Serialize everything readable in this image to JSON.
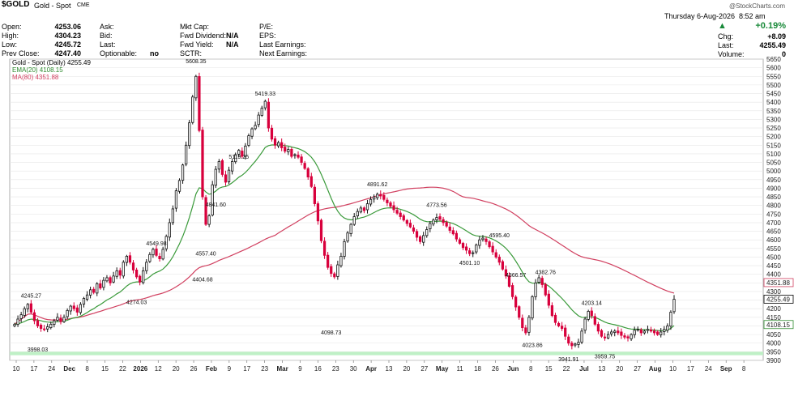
{
  "header": {
    "symbol": "$GOLD",
    "name": "Gold - Spot",
    "exchange": "CME",
    "date": "Thursday  6-Aug-2026",
    "time": "8:52 am",
    "watermark": "@StockCharts.com",
    "change_pct": "+0.19%",
    "up_color": "#1a8a3a",
    "rows": [
      {
        "label": "Open:",
        "value": "4253.06"
      },
      {
        "label": "High:",
        "value": "4304.23"
      },
      {
        "label": "Low:",
        "value": "4245.72"
      },
      {
        "label": "Prev Close:",
        "value": "4247.40"
      }
    ],
    "col2": [
      {
        "label": "Ask:",
        "value": ""
      },
      {
        "label": "Bid:",
        "value": ""
      },
      {
        "label": "Last:",
        "value": ""
      },
      {
        "label": "Optionable:",
        "value": "no"
      }
    ],
    "col3": [
      {
        "label": "Mkt Cap:",
        "value": ""
      },
      {
        "label": "Fwd Dividend:",
        "value": "N/A"
      },
      {
        "label": "Fwd Yield:",
        "value": "N/A"
      },
      {
        "label": "SCTR:",
        "value": ""
      }
    ],
    "col4": [
      {
        "label": "P/E:",
        "value": ""
      },
      {
        "label": "EPS:",
        "value": ""
      },
      {
        "label": "Last Earnings:",
        "value": ""
      },
      {
        "label": "Next Earnings:",
        "value": ""
      }
    ],
    "right": [
      {
        "label": "Chg:",
        "value": "+8.09"
      },
      {
        "label": "Last:",
        "value": "4255.49"
      },
      {
        "label": "Volume:",
        "value": "0"
      }
    ]
  },
  "chart_data": {
    "type": "candlestick",
    "title": "Gold - Spot (Daily) 4255.49",
    "legend": [
      {
        "name": "EMA(20) 4108.15",
        "color": "#2e8b2e"
      },
      {
        "name": "MA(80) 4351.88",
        "color": "#d14060"
      }
    ],
    "colors": {
      "up": "#111111",
      "down": "#d8003c",
      "ema": "#3a9a3a",
      "ma": "#d14060",
      "support_band": "#bff0c6"
    },
    "y_axis": {
      "side": "right",
      "min": 3900,
      "max": 5650,
      "step": 50
    },
    "x_labels": [
      "10",
      "17",
      "24",
      "Dec",
      "8",
      "15",
      "22",
      "2026",
      "12",
      "20",
      "26",
      "Feb",
      "9",
      "17",
      "23",
      "Mar",
      "9",
      "16",
      "23",
      "30",
      "Apr",
      "13",
      "20",
      "27",
      "May",
      "11",
      "18",
      "26",
      "Jun",
      "8",
      "15",
      "22",
      "Jul",
      "13",
      "20",
      "27",
      "Aug",
      "10",
      "17",
      "24",
      "Sep",
      "8"
    ],
    "support_band": [
      3930,
      3950
    ],
    "annotations": [
      {
        "text": "5608.35",
        "value": 5608.35
      },
      {
        "text": "5419.33",
        "value": 5419.33
      },
      {
        "text": "5119.25",
        "value": 5119.25
      },
      {
        "text": "4891.62",
        "value": 4891.62
      },
      {
        "text": "4773.56",
        "value": 4773.56
      },
      {
        "text": "4595.40",
        "value": 4595.4
      },
      {
        "text": "4549.98",
        "value": 4549.98
      },
      {
        "text": "4841.60",
        "value": 4841.6
      },
      {
        "text": "4557.40",
        "value": 4557.4
      },
      {
        "text": "4404.68",
        "value": 4404.68
      },
      {
        "text": "4501.10",
        "value": 4501.1
      },
      {
        "text": "4382.76",
        "value": 4382.76
      },
      {
        "text": "4366.57",
        "value": 4366.57
      },
      {
        "text": "4274.03",
        "value": 4274.03
      },
      {
        "text": "4245.27",
        "value": 4245.27
      },
      {
        "text": "4203.14",
        "value": 4203.14
      },
      {
        "text": "4098.73",
        "value": 4098.73
      },
      {
        "text": "4023.86",
        "value": 4023.86
      },
      {
        "text": "3998.03",
        "value": 3998.03
      },
      {
        "text": "3941.91",
        "value": 3941.91
      },
      {
        "text": "3959.75",
        "value": 3959.75
      }
    ],
    "price_tags": [
      {
        "text": "4351.88",
        "value": 4351.88,
        "color": "#d14060"
      },
      {
        "text": "4255.49",
        "value": 4255.49,
        "color": "#000000"
      },
      {
        "text": "4108.15",
        "value": 4108.15,
        "color": "#2e8b2e"
      }
    ],
    "close": [
      4110,
      4140,
      4165,
      4200,
      4225,
      4180,
      4130,
      4100,
      4085,
      4080,
      4095,
      4110,
      4130,
      4150,
      4125,
      4150,
      4190,
      4215,
      4200,
      4180,
      4225,
      4260,
      4280,
      4310,
      4295,
      4345,
      4320,
      4365,
      4380,
      4350,
      4390,
      4420,
      4395,
      4470,
      4505,
      4470,
      4425,
      4385,
      4355,
      4420,
      4470,
      4515,
      4545,
      4510,
      4490,
      4545,
      4620,
      4700,
      4780,
      4885,
      4945,
      5035,
      5150,
      5280,
      5430,
      5550,
      5235,
      4850,
      4690,
      4740,
      4920,
      5010,
      5055,
      4980,
      4935,
      5005,
      5055,
      5095,
      5120,
      5085,
      5145,
      5205,
      5245,
      5265,
      5325,
      5365,
      5405,
      5250,
      5185,
      5150,
      5165,
      5135,
      5115,
      5125,
      5085,
      5095,
      5080,
      5050,
      5015,
      4965,
      4910,
      4810,
      4710,
      4595,
      4510,
      4440,
      4405,
      4385,
      4455,
      4505,
      4590,
      4640,
      4690,
      4735,
      4765,
      4785,
      4770,
      4810,
      4835,
      4850,
      4865,
      4855,
      4835,
      4815,
      4795,
      4775,
      4755,
      4735,
      4715,
      4695,
      4675,
      4650,
      4615,
      4590,
      4625,
      4660,
      4695,
      4715,
      4730,
      4720,
      4700,
      4680,
      4655,
      4635,
      4605,
      4580,
      4555,
      4540,
      4520,
      4525,
      4570,
      4600,
      4610,
      4590,
      4560,
      4530,
      4500,
      4470,
      4430,
      4390,
      4330,
      4270,
      4210,
      4150,
      4090,
      4060,
      4150,
      4270,
      4350,
      4380,
      4340,
      4280,
      4220,
      4160,
      4120,
      4100,
      4085,
      4040,
      4000,
      3985,
      3995,
      4005,
      4070,
      4140,
      4185,
      4160,
      4110,
      4070,
      4040,
      4030,
      4050,
      4065,
      4070,
      4060,
      4045,
      4035,
      4030,
      4050,
      4075,
      4080,
      4060,
      4070,
      4080,
      4070,
      4060,
      4050,
      4065,
      4080,
      4100,
      4180,
      4255
    ]
  }
}
